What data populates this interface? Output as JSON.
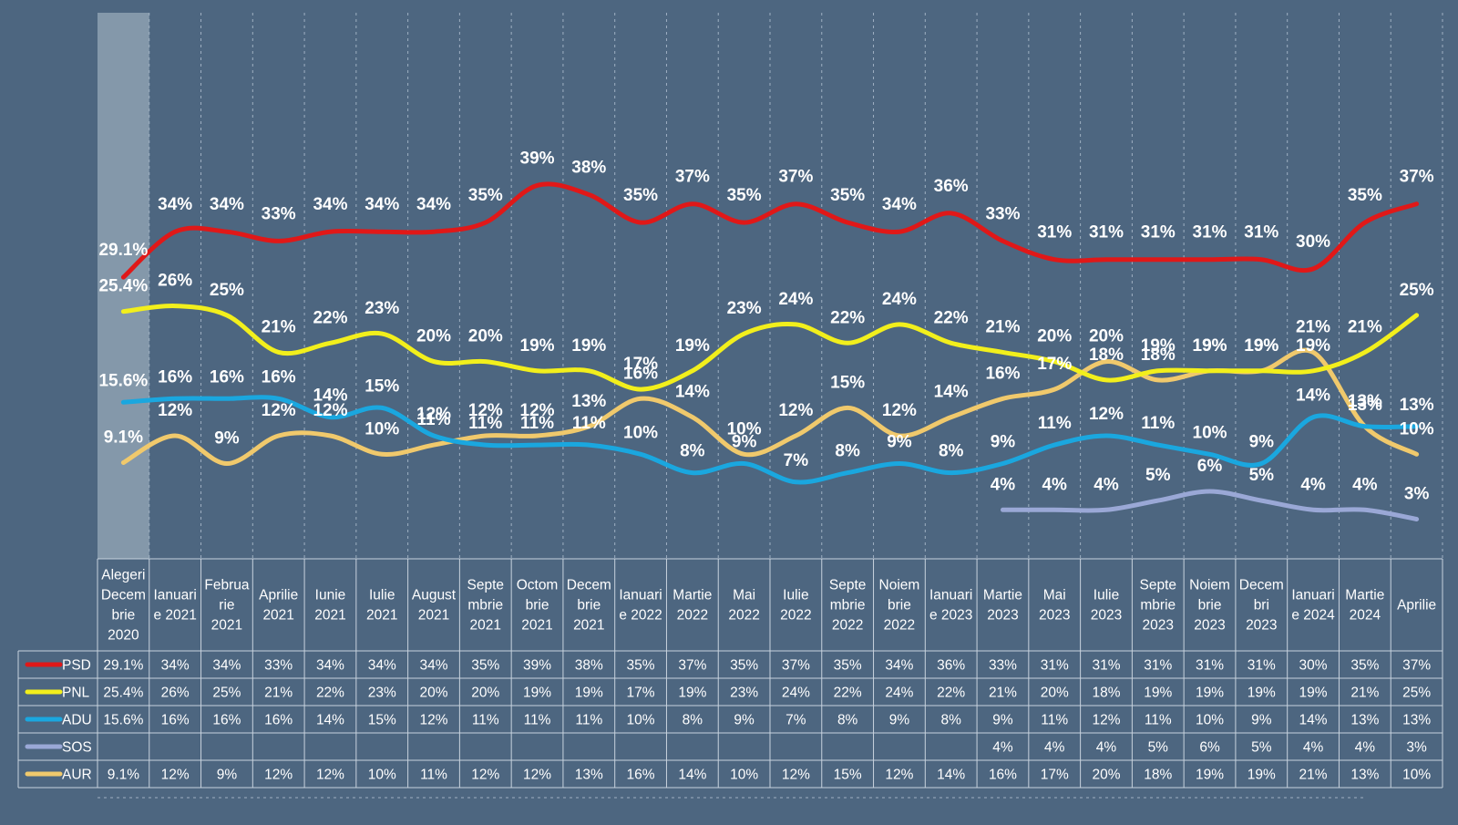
{
  "chart_data": {
    "type": "line",
    "categories": [
      [
        "Alegeri",
        "Decem",
        "brie",
        "2020"
      ],
      [
        "Ianuari",
        "e 2021"
      ],
      [
        "Februa",
        "rie",
        "2021"
      ],
      [
        "Aprilie",
        "2021"
      ],
      [
        "Iunie",
        "2021"
      ],
      [
        "Iulie",
        "2021"
      ],
      [
        "August",
        "2021"
      ],
      [
        "Septe",
        "mbrie",
        "2021"
      ],
      [
        "Octom",
        "brie",
        "2021"
      ],
      [
        "Decem",
        "brie",
        "2021"
      ],
      [
        "Ianuari",
        "e 2022"
      ],
      [
        "Martie",
        "2022"
      ],
      [
        "Mai",
        "2022"
      ],
      [
        "Iulie",
        "2022"
      ],
      [
        "Septe",
        "mbrie",
        "2022"
      ],
      [
        "Noiem",
        "brie",
        "2022"
      ],
      [
        "Ianuari",
        "e 2023"
      ],
      [
        "Martie",
        "2023"
      ],
      [
        "Mai",
        "2023"
      ],
      [
        "Iulie",
        "2023"
      ],
      [
        "Septe",
        "mbrie",
        "2023"
      ],
      [
        "Noiem",
        "brie",
        "2023"
      ],
      [
        "Decem",
        "bri",
        "2023"
      ],
      [
        "Ianuari",
        "e 2024"
      ],
      [
        "Martie",
        "2024"
      ],
      [
        "Aprilie"
      ]
    ],
    "ylim": [
      0,
      45
    ],
    "highlight_first_column": true,
    "series": [
      {
        "name": "PSD",
        "color": "#e01818",
        "values": [
          29.1,
          34,
          34,
          33,
          34,
          34,
          34,
          35,
          39,
          38,
          35,
          37,
          35,
          37,
          35,
          34,
          36,
          33,
          31,
          31,
          31,
          31,
          31,
          30,
          35,
          37
        ],
        "labels": [
          "29.1%",
          "34%",
          "34%",
          "33%",
          "34%",
          "34%",
          "34%",
          "35%",
          "39%",
          "38%",
          "35%",
          "37%",
          "35%",
          "37%",
          "35%",
          "34%",
          "36%",
          "33%",
          "31%",
          "31%",
          "31%",
          "31%",
          "31%",
          "30%",
          "35%",
          "37%"
        ]
      },
      {
        "name": "PNL",
        "color": "#f2ef1c",
        "values": [
          25.4,
          26,
          25,
          21,
          22,
          23,
          20,
          20,
          19,
          19,
          17,
          19,
          23,
          24,
          22,
          24,
          22,
          21,
          20,
          18,
          19,
          19,
          19,
          19,
          21,
          25
        ],
        "labels": [
          "25.4%",
          "26%",
          "25%",
          "21%",
          "22%",
          "23%",
          "20%",
          "20%",
          "19%",
          "19%",
          "17%",
          "19%",
          "23%",
          "24%",
          "22%",
          "24%",
          "22%",
          "21%",
          "20%",
          "18%",
          "19%",
          "19%",
          "19%",
          "19%",
          "21%",
          "25%"
        ]
      },
      {
        "name": "ADU",
        "color": "#1aa7df",
        "values": [
          15.6,
          16,
          16,
          16,
          14,
          15,
          12,
          11,
          11,
          11,
          10,
          8,
          9,
          7,
          8,
          9,
          8,
          9,
          11,
          12,
          11,
          10,
          9,
          14,
          13,
          13
        ],
        "labels": [
          "15.6%",
          "16%",
          "16%",
          "16%",
          "14%",
          "15%",
          "12%",
          "11%",
          "11%",
          "11%",
          "10%",
          "8%",
          "9%",
          "7%",
          "8%",
          "9%",
          "8%",
          "9%",
          "11%",
          "12%",
          "11%",
          "10%",
          "9%",
          "14%",
          "13%",
          "13%"
        ]
      },
      {
        "name": "SOS",
        "color": "#9aa8d6",
        "values": [
          null,
          null,
          null,
          null,
          null,
          null,
          null,
          null,
          null,
          null,
          null,
          null,
          null,
          null,
          null,
          null,
          null,
          4,
          4,
          4,
          5,
          6,
          5,
          4,
          4,
          3
        ],
        "labels": [
          "",
          "",
          "",
          "",
          "",
          "",
          "",
          "",
          "",
          "",
          "",
          "",
          "",
          "",
          "",
          "",
          "",
          "4%",
          "4%",
          "4%",
          "5%",
          "6%",
          "5%",
          "4%",
          "4%",
          "3%"
        ]
      },
      {
        "name": "AUR",
        "color": "#f0c96c",
        "values": [
          9.1,
          12,
          9,
          12,
          12,
          10,
          11,
          12,
          12,
          13,
          16,
          14,
          10,
          12,
          15,
          12,
          14,
          16,
          17,
          20,
          18,
          19,
          19,
          21,
          13,
          10
        ],
        "labels": [
          "9.1%",
          "12%",
          "9%",
          "12%",
          "12%",
          "10%",
          "11%",
          "12%",
          "12%",
          "13%",
          "16%",
          "14%",
          "10%",
          "12%",
          "15%",
          "12%",
          "14%",
          "16%",
          "17%",
          "20%",
          "18%",
          "19%",
          "19%",
          "21%",
          "13%",
          "10%"
        ]
      }
    ]
  }
}
